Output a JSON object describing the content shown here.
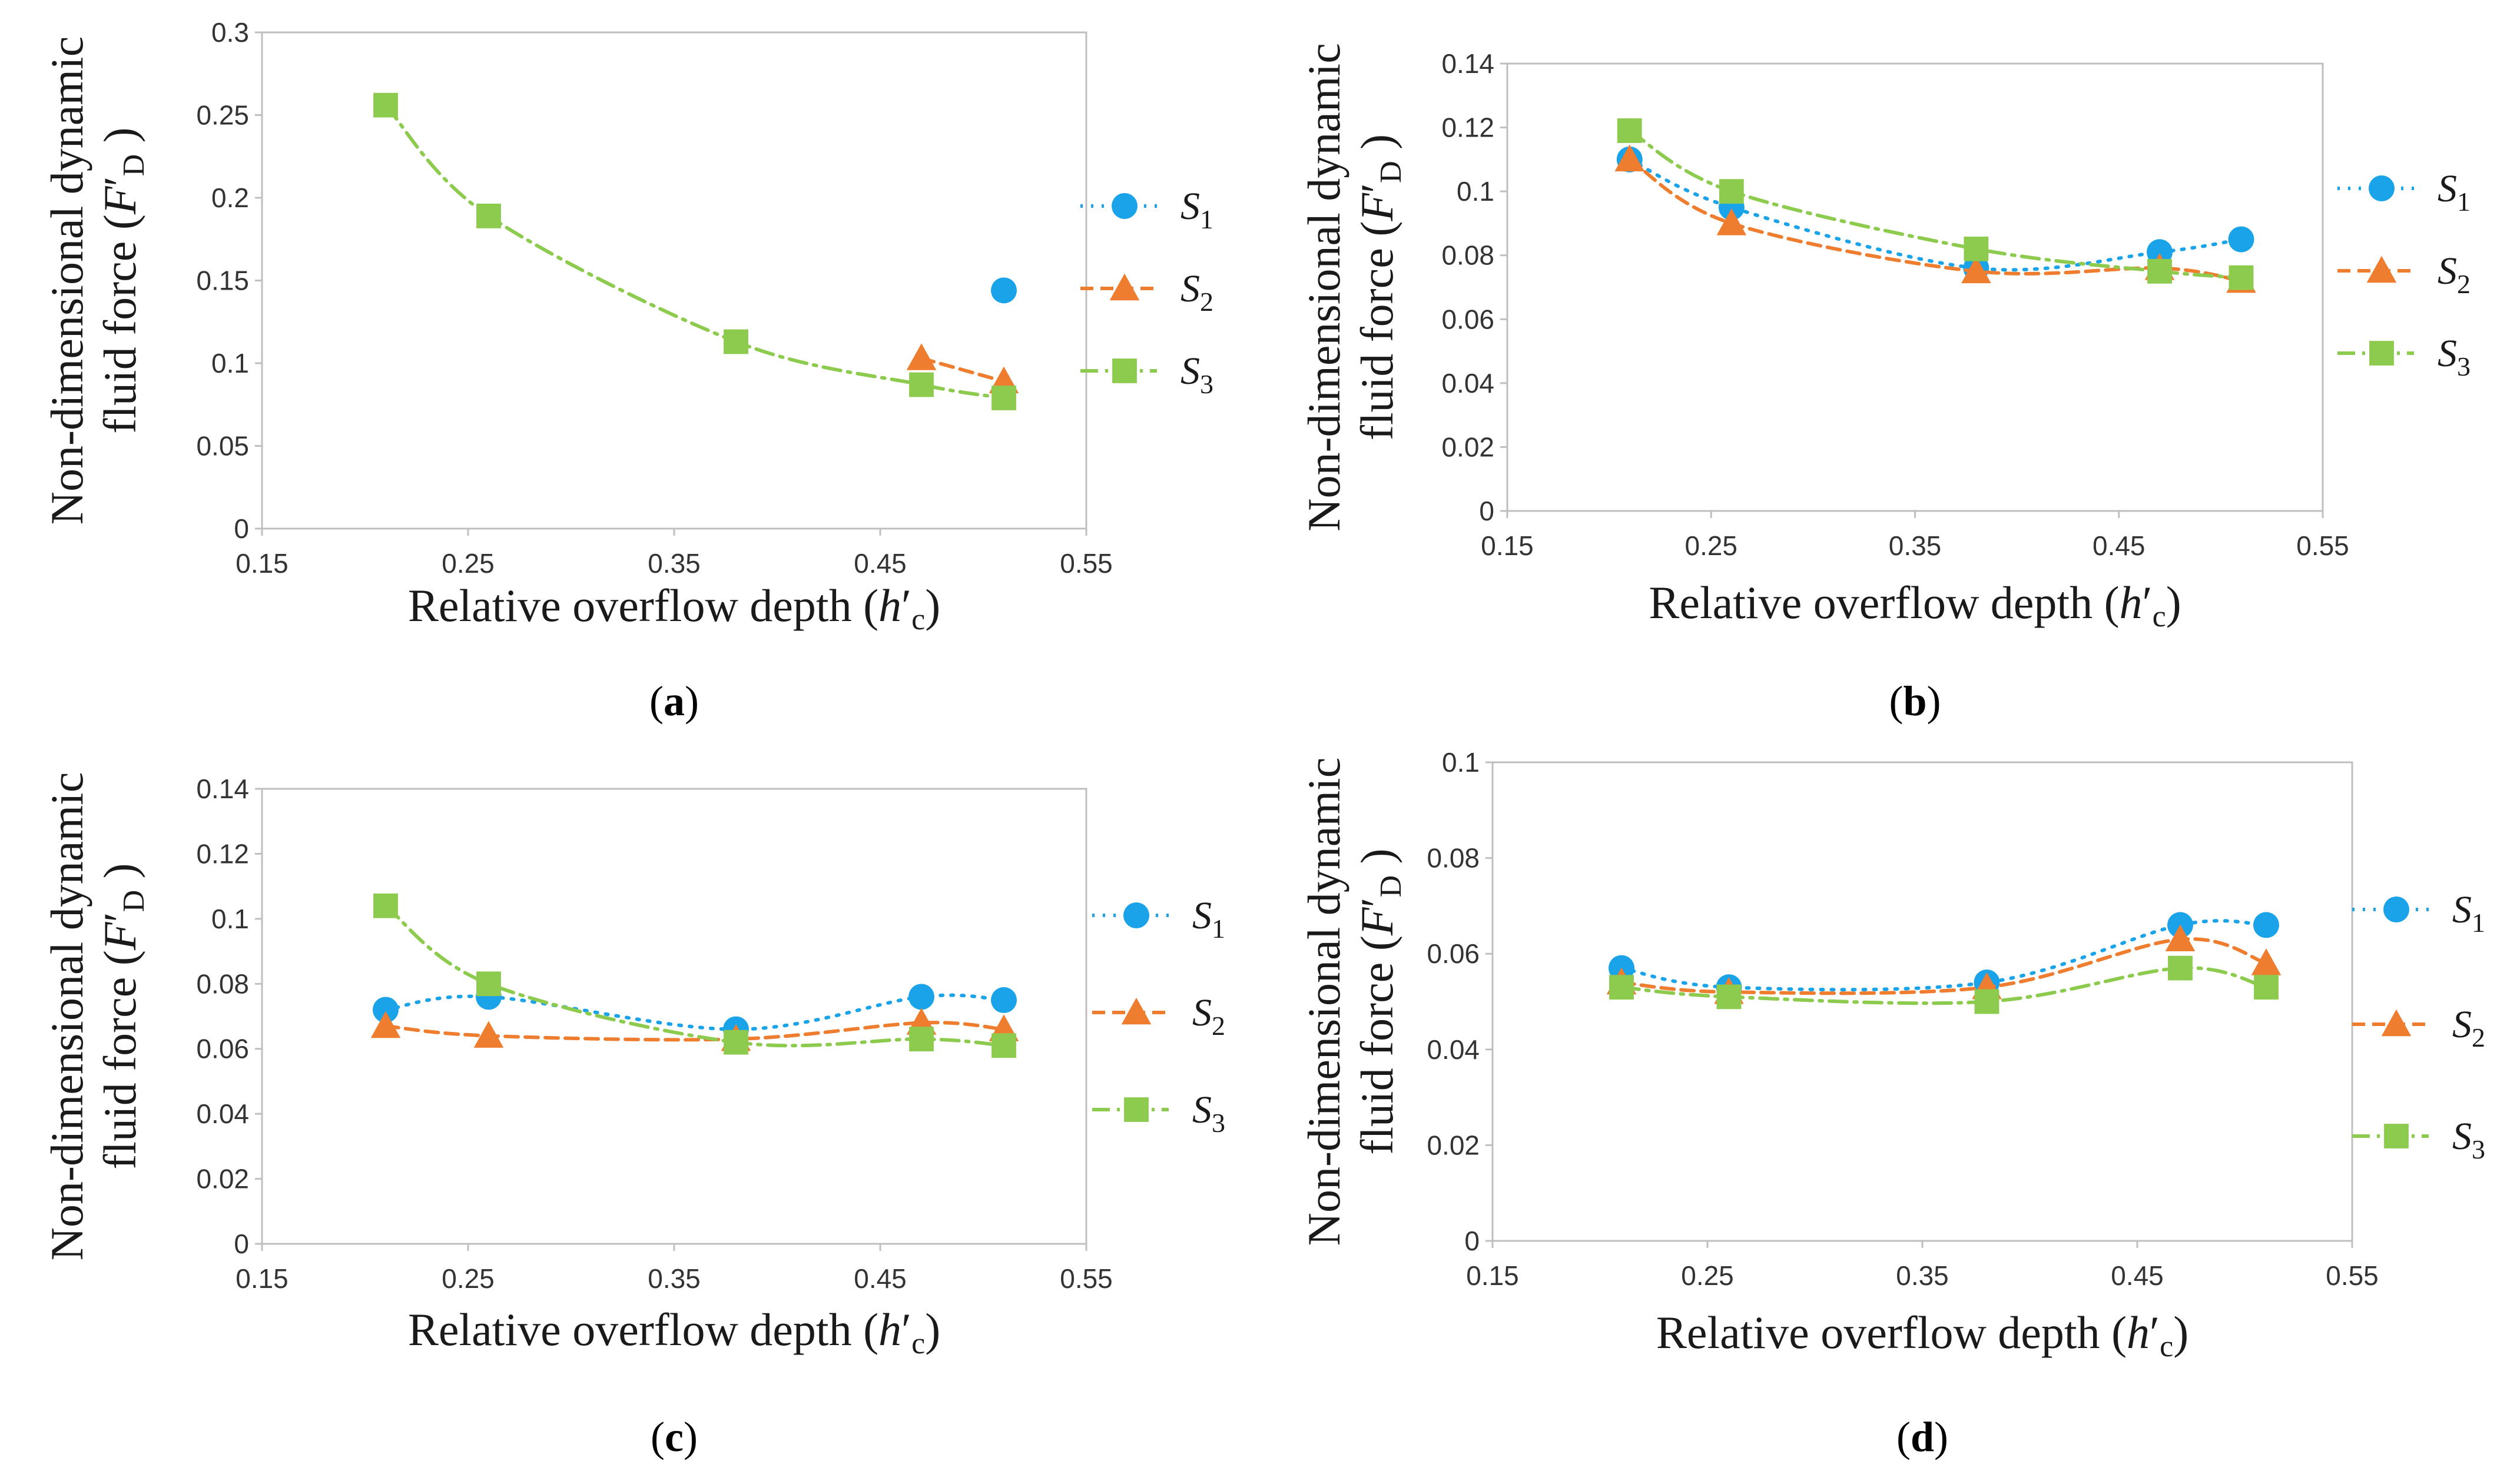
{
  "chart_data": [
    {
      "panel": "(a)",
      "panel_letter": "a",
      "type": "line",
      "xlabel_main": "Relative overflow depth (",
      "xlabel_var": "h",
      "xlabel_prime": "′",
      "xlabel_sub": "c",
      "xlabel_close": ")",
      "ylabel_line1": "Non-dimensional dynamic",
      "ylabel_line2_main": "fluid force (",
      "ylabel_line2_var": "F",
      "ylabel_line2_prime": "′",
      "ylabel_line2_sub": "D",
      "ylabel_line2_close": " )",
      "xlim": [
        0.15,
        0.55
      ],
      "ylim": [
        0,
        0.3
      ],
      "xticks": [
        "0.15",
        "0.25",
        "0.35",
        "0.45",
        "0.55"
      ],
      "yticks": [
        "0",
        "0.05",
        "0.1",
        "0.15",
        "0.2",
        "0.25",
        "0.3"
      ],
      "series": [
        {
          "name": "S",
          "sub": "1",
          "x": [
            0.51
          ],
          "values": [
            0.144
          ]
        },
        {
          "name": "S",
          "sub": "2",
          "x": [
            0.47,
            0.51
          ],
          "values": [
            0.103,
            0.089
          ]
        },
        {
          "name": "S",
          "sub": "3",
          "x": [
            0.21,
            0.26,
            0.38,
            0.47,
            0.51
          ],
          "values": [
            0.256,
            0.189,
            0.113,
            0.087,
            0.079
          ]
        }
      ]
    },
    {
      "panel": "(b)",
      "panel_letter": "b",
      "type": "line",
      "xlabel_main": "Relative overflow depth (",
      "xlabel_var": "h",
      "xlabel_prime": "′",
      "xlabel_sub": "c",
      "xlabel_close": ")",
      "ylabel_line1": "Non-dimensional dynamic",
      "ylabel_line2_main": "fluid force (",
      "ylabel_line2_var": "F",
      "ylabel_line2_prime": "′",
      "ylabel_line2_sub": "D",
      "ylabel_line2_close": " )",
      "xlim": [
        0.15,
        0.55
      ],
      "ylim": [
        0,
        0.14
      ],
      "xticks": [
        "0.15",
        "0.25",
        "0.35",
        "0.45",
        "0.55"
      ],
      "yticks": [
        "0",
        "0.02",
        "0.04",
        "0.06",
        "0.08",
        "0.1",
        "0.12",
        "0.14"
      ],
      "series": [
        {
          "name": "S",
          "sub": "1",
          "x": [
            0.21,
            0.26,
            0.38,
            0.47,
            0.51
          ],
          "values": [
            0.11,
            0.095,
            0.076,
            0.081,
            0.085
          ]
        },
        {
          "name": "S",
          "sub": "2",
          "x": [
            0.21,
            0.26,
            0.38,
            0.47,
            0.51
          ],
          "values": [
            0.11,
            0.09,
            0.075,
            0.076,
            0.072
          ]
        },
        {
          "name": "S",
          "sub": "3",
          "x": [
            0.21,
            0.26,
            0.38,
            0.47,
            0.51
          ],
          "values": [
            0.119,
            0.1,
            0.082,
            0.075,
            0.073
          ]
        }
      ]
    },
    {
      "panel": "(c)",
      "panel_letter": "c",
      "type": "line",
      "xlabel_main": "Relative overflow depth (",
      "xlabel_var": "h",
      "xlabel_prime": "′",
      "xlabel_sub": "c",
      "xlabel_close": ")",
      "ylabel_line1": "Non-dimensional dynamic",
      "ylabel_line2_main": "fluid force (",
      "ylabel_line2_var": "F",
      "ylabel_line2_prime": "′",
      "ylabel_line2_sub": "D",
      "ylabel_line2_close": " )",
      "xlim": [
        0.15,
        0.55
      ],
      "ylim": [
        0,
        0.14
      ],
      "xticks": [
        "0.15",
        "0.25",
        "0.35",
        "0.45",
        "0.55"
      ],
      "yticks": [
        "0",
        "0.02",
        "0.04",
        "0.06",
        "0.08",
        "0.1",
        "0.12",
        "0.14"
      ],
      "series": [
        {
          "name": "S",
          "sub": "1",
          "x": [
            0.21,
            0.26,
            0.38,
            0.47,
            0.51
          ],
          "values": [
            0.072,
            0.076,
            0.066,
            0.076,
            0.075
          ]
        },
        {
          "name": "S",
          "sub": "2",
          "x": [
            0.21,
            0.26,
            0.38,
            0.47,
            0.51
          ],
          "values": [
            0.067,
            0.064,
            0.063,
            0.068,
            0.066
          ]
        },
        {
          "name": "S",
          "sub": "3",
          "x": [
            0.21,
            0.26,
            0.38,
            0.47,
            0.51
          ],
          "values": [
            0.104,
            0.08,
            0.062,
            0.063,
            0.061
          ]
        }
      ]
    },
    {
      "panel": "(d)",
      "panel_letter": "d",
      "type": "line",
      "xlabel_main": "Relative overflow depth (",
      "xlabel_var": "h",
      "xlabel_prime": "′",
      "xlabel_sub": "c",
      "xlabel_close": ")",
      "ylabel_line1": "Non-dimensional dynamic",
      "ylabel_line2_main": "fluid force (",
      "ylabel_line2_var": "F",
      "ylabel_line2_prime": "′",
      "ylabel_line2_sub": "D",
      "ylabel_line2_close": " )",
      "xlim": [
        0.15,
        0.55
      ],
      "ylim": [
        0,
        0.1
      ],
      "xticks": [
        "0.15",
        "0.25",
        "0.35",
        "0.45",
        "0.55"
      ],
      "yticks": [
        "0",
        "0.02",
        "0.04",
        "0.06",
        "0.08",
        "0.1"
      ],
      "series": [
        {
          "name": "S",
          "sub": "1",
          "x": [
            0.21,
            0.26,
            0.38,
            0.47,
            0.51
          ],
          "values": [
            0.057,
            0.053,
            0.054,
            0.066,
            0.066
          ]
        },
        {
          "name": "S",
          "sub": "2",
          "x": [
            0.21,
            0.26,
            0.38,
            0.47,
            0.51
          ],
          "values": [
            0.054,
            0.052,
            0.053,
            0.063,
            0.058
          ]
        },
        {
          "name": "S",
          "sub": "3",
          "x": [
            0.21,
            0.26,
            0.38,
            0.47,
            0.51
          ],
          "values": [
            0.053,
            0.051,
            0.05,
            0.057,
            0.053
          ]
        }
      ]
    }
  ],
  "colors": {
    "s1": "#1aa3e8",
    "s2": "#ee7d2f",
    "s3": "#8dcb4e",
    "axis": "#bfbfbf",
    "text": "#1a1a1a"
  },
  "markers": {
    "s1": "circle",
    "s2": "triangle",
    "s3": "square"
  }
}
